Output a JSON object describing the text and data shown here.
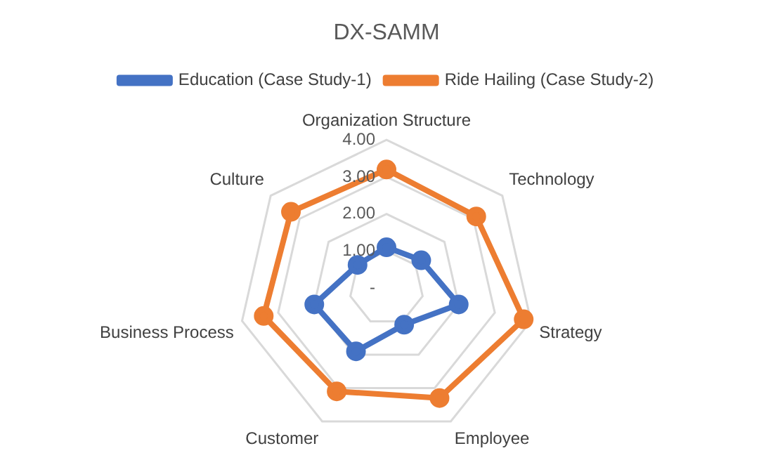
{
  "chart_data": {
    "type": "radar",
    "title": "DX-SAMM",
    "categories": [
      "Organization Structure",
      "Technology",
      "Strategy",
      "Employee",
      "Customer",
      "Business Process",
      "Culture"
    ],
    "series": [
      {
        "name": "Education (Case Study-1)",
        "color": "#4472c4",
        "values": [
          1.1,
          1.2,
          2.0,
          1.1,
          1.9,
          2.0,
          1.0
        ]
      },
      {
        "name": "Ride Hailing (Case Study-2)",
        "color": "#ed7d31",
        "values": [
          3.2,
          3.1,
          3.8,
          3.3,
          3.1,
          3.4,
          3.3
        ]
      }
    ],
    "ylim": [
      0,
      4
    ],
    "yticks": [
      {
        "value": 0,
        "label": "-"
      },
      {
        "value": 1,
        "label": "1.00"
      },
      {
        "value": 2,
        "label": "2.00"
      },
      {
        "value": 3,
        "label": "3.00"
      },
      {
        "value": 4,
        "label": "4.00"
      }
    ],
    "grid": true,
    "legend": "top",
    "marker": "circle",
    "line_style": "solid"
  }
}
